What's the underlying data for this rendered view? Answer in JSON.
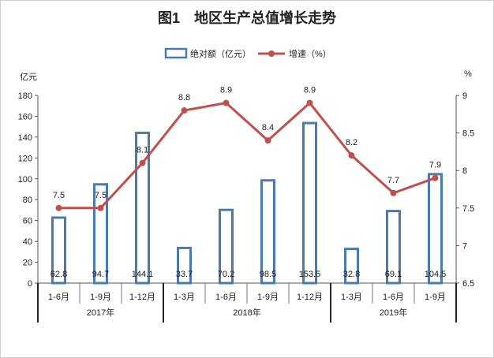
{
  "chart_data": {
    "type": "bar+line",
    "title": "图1　地区生产总值增长走势",
    "categories": [
      "1-6月",
      "1-9月",
      "1-12月",
      "1-3月",
      "1-6月",
      "1-9月",
      "1-12月",
      "1-3月",
      "1-6月",
      "1-9月"
    ],
    "groups": [
      {
        "label": "2017年",
        "count": 3
      },
      {
        "label": "2018年",
        "count": 4
      },
      {
        "label": "2019年",
        "count": 3
      }
    ],
    "series": [
      {
        "name": "绝对额（亿元）",
        "type": "bar",
        "axis": "left",
        "color": "#4a7ab0",
        "values": [
          62.8,
          94.7,
          144.1,
          33.7,
          70.2,
          98.5,
          153.5,
          32.8,
          69.1,
          104.5
        ]
      },
      {
        "name": "增速（%）",
        "type": "line",
        "axis": "right",
        "color": "#c0504d",
        "values": [
          7.5,
          7.5,
          8.1,
          8.8,
          8.9,
          8.4,
          8.9,
          8.2,
          7.7,
          7.9
        ]
      }
    ],
    "y_left": {
      "unit": "亿元",
      "range": [
        0,
        180
      ],
      "ticks": [
        0,
        20,
        40,
        60,
        80,
        100,
        120,
        140,
        160,
        180
      ]
    },
    "y_right": {
      "unit": "%",
      "range": [
        6.5,
        9
      ],
      "ticks": [
        6.5,
        7,
        7.5,
        8,
        8.5,
        9
      ]
    },
    "legend_position": "top-center",
    "grid": false
  }
}
